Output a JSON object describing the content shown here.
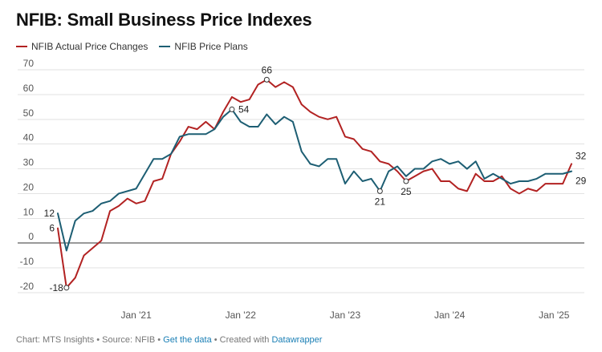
{
  "title": "NFIB: Small Business Price Indexes",
  "footer": {
    "prefix": "Chart: MTS Insights • Source: NFIB • ",
    "get_data": "Get the data",
    "middle": " • Created with ",
    "tool": "Datawrapper"
  },
  "colors": {
    "actual": "#b22222",
    "plans": "#1d5e73",
    "grid": "#e2e2e2",
    "zero": "#333333"
  },
  "chart_data": {
    "type": "line",
    "title": "NFIB: Small Business Price Indexes",
    "x_start": "2020-04",
    "x_ticks": [
      {
        "label": "Jan '21",
        "month_index": 9
      },
      {
        "label": "Jan '22",
        "month_index": 21
      },
      {
        "label": "Jan '23",
        "month_index": 33
      },
      {
        "label": "Jan '24",
        "month_index": 45
      },
      {
        "label": "Jan '25",
        "month_index": 57
      }
    ],
    "ylim": [
      -20,
      70
    ],
    "y_ticks": [
      -20,
      -10,
      0,
      10,
      20,
      30,
      40,
      50,
      60,
      70
    ],
    "grid": true,
    "legend_position": "top-left",
    "series": [
      {
        "name": "NFIB Actual Price Changes",
        "color_key": "actual",
        "values": [
          6,
          -18,
          -14,
          -5,
          -2,
          1,
          13,
          15,
          18,
          16,
          17,
          25,
          26,
          36,
          41,
          47,
          46,
          49,
          46,
          53,
          59,
          57,
          58,
          64,
          66,
          63,
          65,
          63,
          56,
          53,
          51,
          50,
          51,
          43,
          42,
          38,
          37,
          33,
          32,
          29,
          25,
          27,
          29,
          30,
          25,
          25,
          22,
          21,
          28,
          25,
          25,
          27,
          22,
          20,
          22,
          21,
          24,
          24,
          24,
          32
        ]
      },
      {
        "name": "NFIB Price Plans",
        "color_key": "plans",
        "values": [
          12,
          -3,
          9,
          12,
          13,
          16,
          17,
          20,
          21,
          22,
          28,
          34,
          34,
          36,
          43,
          44,
          44,
          44,
          46,
          51,
          54,
          49,
          47,
          47,
          52,
          48,
          51,
          49,
          37,
          32,
          31,
          34,
          34,
          24,
          29,
          25,
          26,
          21,
          29,
          31,
          27,
          30,
          30,
          33,
          34,
          32,
          33,
          30,
          33,
          26,
          28,
          26,
          24,
          25,
          25,
          26,
          28,
          28,
          28,
          29
        ]
      }
    ],
    "annotations": [
      {
        "series": 0,
        "index": 0,
        "text": "6",
        "pos": "left"
      },
      {
        "series": 0,
        "index": 1,
        "text": "-18",
        "pos": "left",
        "marker": true
      },
      {
        "series": 0,
        "index": 24,
        "text": "66",
        "pos": "above",
        "marker": true
      },
      {
        "series": 0,
        "index": 40,
        "text": "25",
        "pos": "below",
        "marker": true
      },
      {
        "series": 0,
        "index": 59,
        "text": "32",
        "pos": "right-above"
      },
      {
        "series": 1,
        "index": 0,
        "text": "12",
        "pos": "left"
      },
      {
        "series": 1,
        "index": 20,
        "text": "54",
        "pos": "right",
        "marker": true
      },
      {
        "series": 1,
        "index": 37,
        "text": "21",
        "pos": "below",
        "marker": true
      },
      {
        "series": 1,
        "index": 59,
        "text": "29",
        "pos": "right-below"
      }
    ]
  }
}
